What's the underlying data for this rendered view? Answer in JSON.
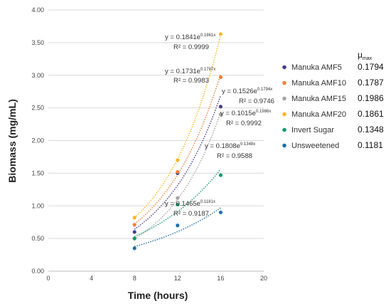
{
  "chart_data": {
    "type": "scatter",
    "xlabel": "Time (hours)",
    "ylabel": "Biomass (mg/mL)",
    "xlim": [
      0,
      20
    ],
    "ylim": [
      0,
      4
    ],
    "xticks": [
      "0",
      "4",
      "8",
      "12",
      "16",
      "20"
    ],
    "yticks": [
      "0.00",
      "0.50",
      "1.00",
      "1.50",
      "2.00",
      "2.50",
      "3.00",
      "3.50",
      "4.00"
    ],
    "grid": "horizontal",
    "legend_placement": "right",
    "mu_header": "μ",
    "mu_header_sub": "max",
    "series": [
      {
        "name": "Manuka AMF5",
        "color": "#4b3a8f",
        "x": [
          8,
          12,
          16
        ],
        "y": [
          0.6,
          1.5,
          2.52
        ],
        "fit_a": 0.1526,
        "fit_b": 0.1794,
        "equation": "y = 0.1526e",
        "exponent": "0.1794x",
        "r2": "R² = 0.9746",
        "mu_max": "0.1794"
      },
      {
        "name": "Manuka AMF10",
        "color": "#f07f3c",
        "x": [
          8,
          12,
          16
        ],
        "y": [
          0.71,
          1.52,
          2.97
        ],
        "fit_a": 0.1731,
        "fit_b": 0.1787,
        "equation": "y = 0.1731e",
        "exponent": "0.1787x",
        "r2": "R² = 0.9983",
        "mu_max": "0.1787"
      },
      {
        "name": "Manuka AMF15",
        "color": "#a6a6a6",
        "x": [
          8,
          12,
          16
        ],
        "y": [
          0.5,
          1.12,
          2.4
        ],
        "fit_a": 0.1015,
        "fit_b": 0.1986,
        "equation": "y = 0.1015e",
        "exponent": "0.1986x",
        "r2": "R² = 0.9992",
        "mu_max": "0.1986"
      },
      {
        "name": "Manuka AMF20",
        "color": "#f5b921",
        "x": [
          8,
          12,
          16
        ],
        "y": [
          0.82,
          1.7,
          3.63
        ],
        "fit_a": 0.1841,
        "fit_b": 0.1861,
        "equation": "y = 0.1841e",
        "exponent": "0.1861x",
        "r2": "R² = 0.9999",
        "mu_max": "0.1861"
      },
      {
        "name": "Invert Sugar",
        "color": "#1a9a6a",
        "x": [
          8,
          12,
          16
        ],
        "y": [
          0.5,
          1.02,
          1.47
        ],
        "fit_a": 0.1808,
        "fit_b": 0.1348,
        "equation": "y = 0.1808e",
        "exponent": "0.1348x",
        "r2": "R² = 0.9588",
        "mu_max": "0.1348"
      },
      {
        "name": "Unsweetened",
        "color": "#1f6fa8",
        "x": [
          8,
          12,
          16
        ],
        "y": [
          0.35,
          0.7,
          0.9
        ],
        "fit_a": 0.1465,
        "fit_b": 0.1181,
        "equation": "y = 0.1465e",
        "exponent": "0.1181x",
        "r2": "R² = 0.9187",
        "mu_max": "0.1181"
      }
    ]
  }
}
